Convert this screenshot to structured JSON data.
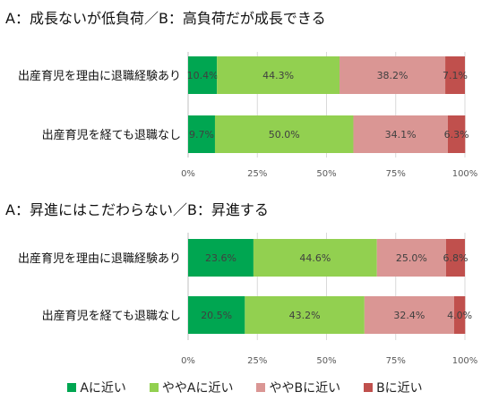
{
  "chart_data": [
    {
      "type": "bar",
      "orientation": "horizontal",
      "stacked": true,
      "title": "A：成長ないが低負荷／B：高負荷だが成長できる",
      "categories": [
        "出産育児を理由に退職経験あり",
        "出産育児を経ても退職なし"
      ],
      "series": [
        {
          "name": "Aに近い",
          "values": [
            10.4,
            9.7
          ]
        },
        {
          "name": "ややAに近い",
          "values": [
            44.3,
            50.0
          ]
        },
        {
          "name": "ややBに近い",
          "values": [
            38.2,
            34.1
          ]
        },
        {
          "name": "Bに近い",
          "values": [
            7.1,
            6.3
          ]
        }
      ],
      "xlim": [
        0,
        100
      ],
      "xticks": [
        "0%",
        "25%",
        "50%",
        "75%",
        "100%"
      ],
      "grid": true
    },
    {
      "type": "bar",
      "orientation": "horizontal",
      "stacked": true,
      "title": "A：昇進にはこだわらない／B：昇進する",
      "categories": [
        "出産育児を理由に退職経験あり",
        "出産育児を経ても退職なし"
      ],
      "series": [
        {
          "name": "Aに近い",
          "values": [
            23.6,
            20.5
          ]
        },
        {
          "name": "ややAに近い",
          "values": [
            44.6,
            43.2
          ]
        },
        {
          "name": "ややBに近い",
          "values": [
            25.0,
            32.4
          ]
        },
        {
          "name": "Bに近い",
          "values": [
            6.8,
            4.0
          ]
        }
      ],
      "xlim": [
        0,
        100
      ],
      "xticks": [
        "0%",
        "25%",
        "50%",
        "75%",
        "100%"
      ],
      "grid": true
    }
  ],
  "legend": {
    "position": "bottom",
    "items": [
      {
        "label": "Aに近い",
        "color": "#00a651"
      },
      {
        "label": "ややAに近い",
        "color": "#92d050"
      },
      {
        "label": "ややBに近い",
        "color": "#da9694"
      },
      {
        "label": "Bに近い",
        "color": "#c0504d"
      }
    ]
  },
  "colors": {
    "grid": "#d9d9d9",
    "axis": "#bfbfbf",
    "label_text": "#404040"
  }
}
